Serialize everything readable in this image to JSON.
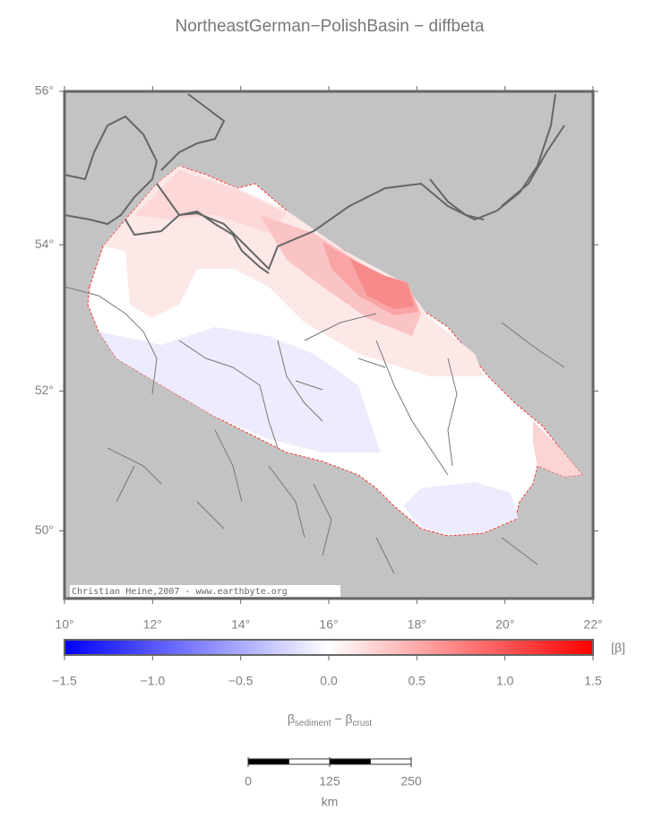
{
  "title": "NortheastGerman−PolishBasin − diffbeta",
  "map": {
    "xlim": [
      10,
      22
    ],
    "ylim": [
      49,
      56
    ],
    "xticks": [
      {
        "value": 10,
        "label": "10°"
      },
      {
        "value": 12,
        "label": "12°"
      },
      {
        "value": 14,
        "label": "14°"
      },
      {
        "value": 16,
        "label": "16°"
      },
      {
        "value": 18,
        "label": "18°"
      },
      {
        "value": 20,
        "label": "20°"
      },
      {
        "value": 22,
        "label": "22°"
      }
    ],
    "yticks": [
      {
        "value": 50,
        "label": "50°"
      },
      {
        "value": 52,
        "label": "52°"
      },
      {
        "value": 54,
        "label": "54°"
      },
      {
        "value": 56,
        "label": "56°"
      }
    ],
    "credit": "Christian Heine,2007 - www.earthbyte.org"
  },
  "colorbar": {
    "clim": [
      -1.5,
      1.5
    ],
    "colors": [
      "#0000ff",
      "#ffffff",
      "#ff0000"
    ],
    "ticks": [
      {
        "value": -1.5,
        "label": "−1.5"
      },
      {
        "value": -1.0,
        "label": "−1.0"
      },
      {
        "value": -0.5,
        "label": "−0.5"
      },
      {
        "value": 0,
        "label": "0.0"
      },
      {
        "value": 0.5,
        "label": "0.5"
      },
      {
        "value": 1.0,
        "label": "1.0"
      },
      {
        "value": 1.5,
        "label": "1.5"
      }
    ],
    "unit": "[β]",
    "label": {
      "beta1": "β",
      "sub1": "sediment",
      "minus": " − ",
      "beta2": "β",
      "sub2": "crust"
    }
  },
  "scale_bar": {
    "ticks": [
      0,
      125,
      250
    ],
    "unit": "km"
  }
}
